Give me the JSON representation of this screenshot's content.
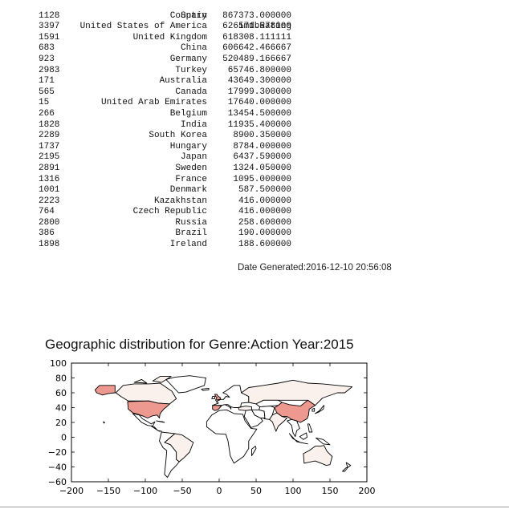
{
  "table": {
    "headers": [
      "Country",
      "imdbRating"
    ],
    "rows": [
      [
        "1128",
        "Spain",
        "867373.000000"
      ],
      [
        "3397",
        "United States of America",
        "626571.578000"
      ],
      [
        "1591",
        "United Kingdom",
        "618308.111111"
      ],
      [
        "683",
        "China",
        "606642.466667"
      ],
      [
        "923",
        "Germany",
        "520489.166667"
      ],
      [
        "2983",
        "Turkey",
        "65746.800000"
      ],
      [
        "171",
        "Australia",
        "43649.300000"
      ],
      [
        "565",
        "Canada",
        "17999.300000"
      ],
      [
        "15",
        "United Arab Emirates",
        "17640.000000"
      ],
      [
        "266",
        "Belgium",
        "13454.500000"
      ],
      [
        "1828",
        "India",
        "11935.400000"
      ],
      [
        "2289",
        "South Korea",
        "8900.350000"
      ],
      [
        "1737",
        "Hungary",
        "8784.000000"
      ],
      [
        "2195",
        "Japan",
        "6437.590000"
      ],
      [
        "2891",
        "Sweden",
        "1324.050000"
      ],
      [
        "1316",
        "France",
        "1095.000000"
      ],
      [
        "1001",
        "Denmark",
        "587.500000"
      ],
      [
        "2223",
        "Kazakhstan",
        "416.000000"
      ],
      [
        "764",
        "Czech Republic",
        "416.000000"
      ],
      [
        "2800",
        "Russia",
        "258.600000"
      ],
      [
        "386",
        "Brazil",
        "190.000000"
      ],
      [
        "1898",
        "Ireland",
        "188.600000"
      ]
    ]
  },
  "date_generated": "Date Generated:2016-12-10 20:56:08",
  "chart_data": {
    "type": "heatmap",
    "title": "Geographic distribution for Genre:Action Year:2015",
    "xlabel": "",
    "ylabel": "",
    "xlim": [
      -200,
      200
    ],
    "ylim": [
      -60,
      100
    ],
    "xticks": [
      "−200",
      "−150",
      "−100",
      "−50",
      "0",
      "50",
      "100",
      "150",
      "200"
    ],
    "yticks": [
      "100",
      "80",
      "60",
      "40",
      "20",
      "0",
      "−20",
      "−40",
      "−60"
    ],
    "grid": false,
    "shaded_countries": [
      {
        "name": "United States of America",
        "level": "high"
      },
      {
        "name": "China",
        "level": "high"
      },
      {
        "name": "Spain",
        "level": "high"
      },
      {
        "name": "United Kingdom",
        "level": "high"
      },
      {
        "name": "Germany",
        "level": "high"
      },
      {
        "name": "Canada",
        "level": "low"
      },
      {
        "name": "Australia",
        "level": "low"
      },
      {
        "name": "Turkey",
        "level": "low"
      },
      {
        "name": "Russia",
        "level": "low"
      },
      {
        "name": "Brazil",
        "level": "low"
      },
      {
        "name": "India",
        "level": "low"
      }
    ],
    "colors": {
      "high": "#ee9990",
      "low": "#fbf1ec",
      "outline": "#000000"
    }
  }
}
